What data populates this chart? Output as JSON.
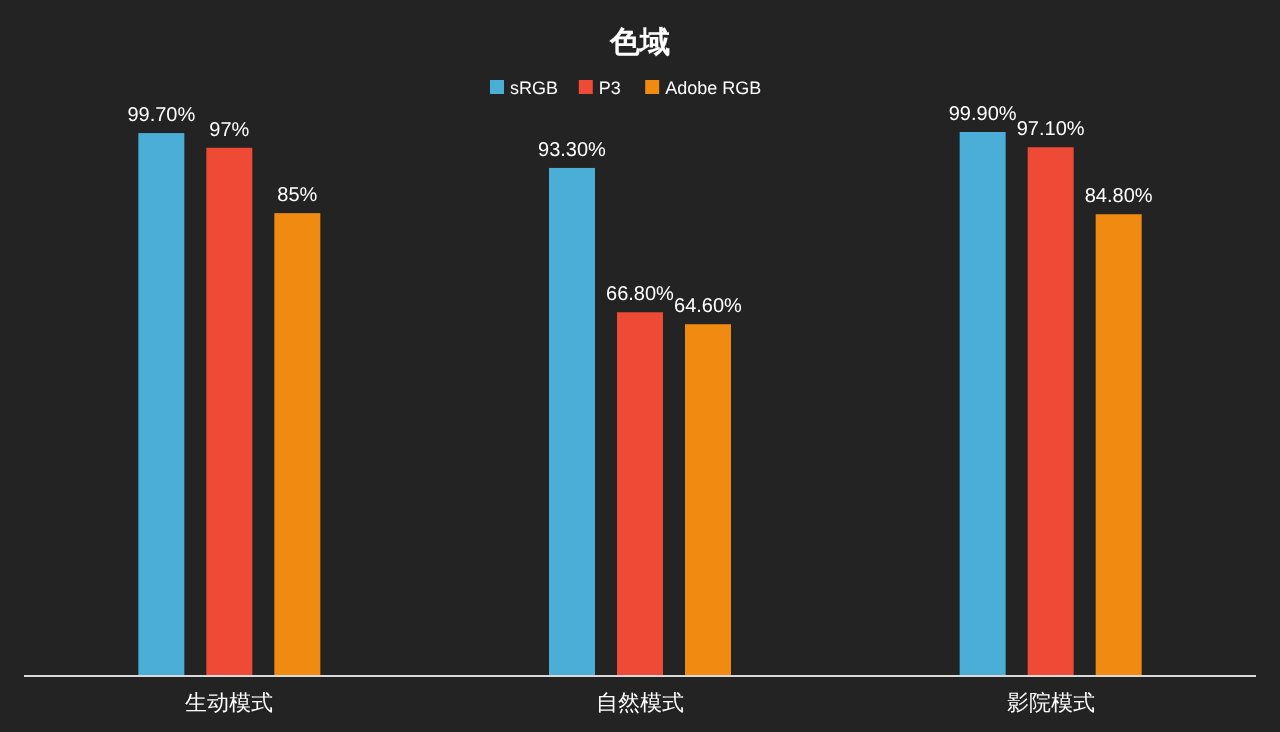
{
  "chart_data": {
    "type": "bar",
    "title": "色域",
    "categories": [
      "生动模式",
      "自然模式",
      "影院模式"
    ],
    "series": [
      {
        "name": "sRGB",
        "color": "#4aaed6",
        "values": [
          99.7,
          93.3,
          99.9
        ],
        "value_labels": [
          "99.70%",
          "93.30%",
          "99.90%"
        ]
      },
      {
        "name": "P3",
        "color": "#ee4a35",
        "values": [
          97,
          66.8,
          97.1
        ],
        "value_labels": [
          "97%",
          "66.80%",
          "97.10%"
        ]
      },
      {
        "name": "Adobe RGB",
        "color": "#f08a10",
        "values": [
          85,
          64.6,
          84.8
        ],
        "value_labels": [
          "85%",
          "64.60%",
          "84.80%"
        ]
      }
    ],
    "legend": "top"
  }
}
